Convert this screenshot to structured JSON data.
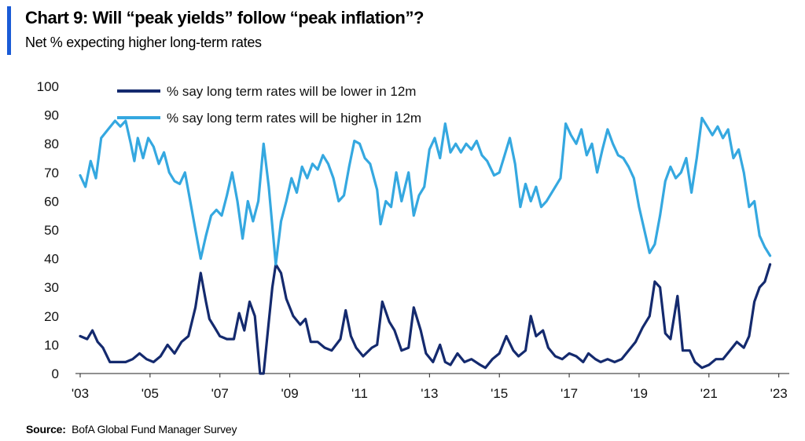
{
  "header": {
    "title": "Chart 9: Will “peak yields” follow “peak inflation”?",
    "subtitle": "Net % expecting higher long-term rates"
  },
  "footer": {
    "source_label": "Source:",
    "source_text": "BofA Global Fund Manager Survey"
  },
  "colors": {
    "accent": "#1a5bd6",
    "lower_series": "#142a6e",
    "higher_series": "#35a8e0"
  },
  "chart_data": {
    "type": "line",
    "title": "Chart 9: Will “peak yields” follow “peak inflation”?",
    "subtitle": "Net % expecting higher long-term rates",
    "ylim": [
      0,
      100
    ],
    "yticks": [
      0,
      10,
      20,
      30,
      40,
      50,
      60,
      70,
      80,
      90,
      100
    ],
    "xlim": [
      2003,
      2023.3
    ],
    "xticks": [
      {
        "value": 2003,
        "label": "'03"
      },
      {
        "value": 2005,
        "label": "'05"
      },
      {
        "value": 2007,
        "label": "'07"
      },
      {
        "value": 2009,
        "label": "'09"
      },
      {
        "value": 2011,
        "label": "'11"
      },
      {
        "value": 2013,
        "label": "'13"
      },
      {
        "value": 2015,
        "label": "'15"
      },
      {
        "value": 2017,
        "label": "'17"
      },
      {
        "value": 2019,
        "label": "'19"
      },
      {
        "value": 2021,
        "label": "'21"
      },
      {
        "value": 2023,
        "label": "'23"
      }
    ],
    "legend_position": "top-center",
    "grid": false,
    "series": [
      {
        "name": "% say long term rates will be lower in 12m",
        "color": "#142a6e",
        "points": [
          [
            2003.0,
            13
          ],
          [
            2003.2,
            12
          ],
          [
            2003.35,
            15
          ],
          [
            2003.5,
            11
          ],
          [
            2003.65,
            9
          ],
          [
            2003.85,
            4
          ],
          [
            2004.1,
            4
          ],
          [
            2004.3,
            4
          ],
          [
            2004.5,
            5
          ],
          [
            2004.7,
            7
          ],
          [
            2004.9,
            5
          ],
          [
            2005.1,
            4
          ],
          [
            2005.3,
            6
          ],
          [
            2005.5,
            10
          ],
          [
            2005.7,
            7
          ],
          [
            2005.9,
            11
          ],
          [
            2006.1,
            13
          ],
          [
            2006.3,
            23
          ],
          [
            2006.45,
            35
          ],
          [
            2006.6,
            25
          ],
          [
            2006.7,
            19
          ],
          [
            2006.85,
            16
          ],
          [
            2007.0,
            13
          ],
          [
            2007.2,
            12
          ],
          [
            2007.4,
            12
          ],
          [
            2007.55,
            21
          ],
          [
            2007.7,
            15
          ],
          [
            2007.85,
            25
          ],
          [
            2008.0,
            20
          ],
          [
            2008.15,
            0
          ],
          [
            2008.25,
            0
          ],
          [
            2008.4,
            18
          ],
          [
            2008.5,
            30
          ],
          [
            2008.6,
            38
          ],
          [
            2008.75,
            35
          ],
          [
            2008.9,
            26
          ],
          [
            2009.1,
            20
          ],
          [
            2009.3,
            17
          ],
          [
            2009.45,
            19
          ],
          [
            2009.6,
            11
          ],
          [
            2009.8,
            11
          ],
          [
            2010.0,
            9
          ],
          [
            2010.2,
            8
          ],
          [
            2010.45,
            12
          ],
          [
            2010.6,
            22
          ],
          [
            2010.75,
            13
          ],
          [
            2010.9,
            9
          ],
          [
            2011.1,
            6
          ],
          [
            2011.35,
            9
          ],
          [
            2011.5,
            10
          ],
          [
            2011.65,
            25
          ],
          [
            2011.85,
            18
          ],
          [
            2012.0,
            15
          ],
          [
            2012.2,
            8
          ],
          [
            2012.4,
            9
          ],
          [
            2012.55,
            23
          ],
          [
            2012.75,
            15
          ],
          [
            2012.9,
            7
          ],
          [
            2013.1,
            4
          ],
          [
            2013.3,
            10
          ],
          [
            2013.45,
            4
          ],
          [
            2013.6,
            3
          ],
          [
            2013.8,
            7
          ],
          [
            2014.0,
            4
          ],
          [
            2014.2,
            5
          ],
          [
            2014.45,
            3
          ],
          [
            2014.6,
            2
          ],
          [
            2014.8,
            5
          ],
          [
            2015.0,
            7
          ],
          [
            2015.2,
            13
          ],
          [
            2015.4,
            8
          ],
          [
            2015.55,
            6
          ],
          [
            2015.75,
            8
          ],
          [
            2015.9,
            20
          ],
          [
            2016.05,
            13
          ],
          [
            2016.25,
            15
          ],
          [
            2016.4,
            9
          ],
          [
            2016.6,
            6
          ],
          [
            2016.8,
            5
          ],
          [
            2017.0,
            7
          ],
          [
            2017.2,
            6
          ],
          [
            2017.4,
            4
          ],
          [
            2017.55,
            7
          ],
          [
            2017.75,
            5
          ],
          [
            2017.9,
            4
          ],
          [
            2018.1,
            5
          ],
          [
            2018.3,
            4
          ],
          [
            2018.5,
            5
          ],
          [
            2018.7,
            8
          ],
          [
            2018.9,
            11
          ],
          [
            2019.1,
            16
          ],
          [
            2019.3,
            20
          ],
          [
            2019.45,
            32
          ],
          [
            2019.6,
            30
          ],
          [
            2019.75,
            14
          ],
          [
            2019.9,
            12
          ],
          [
            2020.1,
            27
          ],
          [
            2020.25,
            8
          ],
          [
            2020.45,
            8
          ],
          [
            2020.6,
            4
          ],
          [
            2020.8,
            2
          ],
          [
            2021.0,
            3
          ],
          [
            2021.2,
            5
          ],
          [
            2021.4,
            5
          ],
          [
            2021.6,
            8
          ],
          [
            2021.8,
            11
          ],
          [
            2022.0,
            9
          ],
          [
            2022.15,
            13
          ],
          [
            2022.3,
            25
          ],
          [
            2022.45,
            30
          ],
          [
            2022.6,
            32
          ],
          [
            2022.75,
            38
          ]
        ]
      },
      {
        "name": "% say long term rates will be higher in 12m",
        "color": "#35a8e0",
        "points": [
          [
            2003.0,
            69
          ],
          [
            2003.15,
            65
          ],
          [
            2003.3,
            74
          ],
          [
            2003.45,
            68
          ],
          [
            2003.6,
            82
          ],
          [
            2003.8,
            85
          ],
          [
            2004.0,
            88
          ],
          [
            2004.15,
            86
          ],
          [
            2004.3,
            88
          ],
          [
            2004.45,
            80
          ],
          [
            2004.55,
            74
          ],
          [
            2004.65,
            82
          ],
          [
            2004.8,
            75
          ],
          [
            2004.95,
            82
          ],
          [
            2005.1,
            79
          ],
          [
            2005.25,
            73
          ],
          [
            2005.4,
            77
          ],
          [
            2005.55,
            70
          ],
          [
            2005.7,
            67
          ],
          [
            2005.85,
            66
          ],
          [
            2006.0,
            70
          ],
          [
            2006.15,
            60
          ],
          [
            2006.3,
            50
          ],
          [
            2006.45,
            40
          ],
          [
            2006.6,
            48
          ],
          [
            2006.75,
            55
          ],
          [
            2006.9,
            57
          ],
          [
            2007.05,
            55
          ],
          [
            2007.2,
            62
          ],
          [
            2007.35,
            70
          ],
          [
            2007.5,
            60
          ],
          [
            2007.65,
            47
          ],
          [
            2007.8,
            60
          ],
          [
            2007.95,
            53
          ],
          [
            2008.1,
            60
          ],
          [
            2008.25,
            80
          ],
          [
            2008.4,
            65
          ],
          [
            2008.6,
            38
          ],
          [
            2008.75,
            53
          ],
          [
            2008.9,
            60
          ],
          [
            2009.05,
            68
          ],
          [
            2009.2,
            63
          ],
          [
            2009.35,
            72
          ],
          [
            2009.5,
            68
          ],
          [
            2009.65,
            73
          ],
          [
            2009.8,
            71
          ],
          [
            2009.95,
            76
          ],
          [
            2010.1,
            73
          ],
          [
            2010.25,
            68
          ],
          [
            2010.4,
            60
          ],
          [
            2010.55,
            62
          ],
          [
            2010.7,
            72
          ],
          [
            2010.85,
            81
          ],
          [
            2011.0,
            80
          ],
          [
            2011.15,
            75
          ],
          [
            2011.3,
            73
          ],
          [
            2011.5,
            64
          ],
          [
            2011.6,
            52
          ],
          [
            2011.75,
            60
          ],
          [
            2011.9,
            58
          ],
          [
            2012.05,
            70
          ],
          [
            2012.2,
            60
          ],
          [
            2012.4,
            70
          ],
          [
            2012.55,
            55
          ],
          [
            2012.7,
            62
          ],
          [
            2012.85,
            65
          ],
          [
            2013.0,
            78
          ],
          [
            2013.15,
            82
          ],
          [
            2013.3,
            75
          ],
          [
            2013.45,
            87
          ],
          [
            2013.6,
            77
          ],
          [
            2013.75,
            80
          ],
          [
            2013.9,
            77
          ],
          [
            2014.05,
            80
          ],
          [
            2014.2,
            78
          ],
          [
            2014.35,
            81
          ],
          [
            2014.5,
            76
          ],
          [
            2014.65,
            74
          ],
          [
            2014.85,
            69
          ],
          [
            2015.0,
            70
          ],
          [
            2015.15,
            76
          ],
          [
            2015.3,
            82
          ],
          [
            2015.45,
            73
          ],
          [
            2015.6,
            58
          ],
          [
            2015.75,
            66
          ],
          [
            2015.9,
            60
          ],
          [
            2016.05,
            65
          ],
          [
            2016.2,
            58
          ],
          [
            2016.35,
            60
          ],
          [
            2016.55,
            64
          ],
          [
            2016.75,
            68
          ],
          [
            2016.9,
            87
          ],
          [
            2017.05,
            83
          ],
          [
            2017.2,
            80
          ],
          [
            2017.35,
            85
          ],
          [
            2017.5,
            76
          ],
          [
            2017.65,
            80
          ],
          [
            2017.8,
            70
          ],
          [
            2017.95,
            78
          ],
          [
            2018.1,
            85
          ],
          [
            2018.25,
            80
          ],
          [
            2018.4,
            76
          ],
          [
            2018.55,
            75
          ],
          [
            2018.7,
            72
          ],
          [
            2018.85,
            68
          ],
          [
            2019.0,
            58
          ],
          [
            2019.15,
            50
          ],
          [
            2019.3,
            42
          ],
          [
            2019.45,
            45
          ],
          [
            2019.6,
            55
          ],
          [
            2019.75,
            67
          ],
          [
            2019.9,
            72
          ],
          [
            2020.05,
            68
          ],
          [
            2020.2,
            70
          ],
          [
            2020.35,
            75
          ],
          [
            2020.5,
            63
          ],
          [
            2020.65,
            75
          ],
          [
            2020.8,
            89
          ],
          [
            2020.95,
            86
          ],
          [
            2021.1,
            83
          ],
          [
            2021.25,
            86
          ],
          [
            2021.4,
            82
          ],
          [
            2021.55,
            85
          ],
          [
            2021.7,
            75
          ],
          [
            2021.85,
            78
          ],
          [
            2022.0,
            70
          ],
          [
            2022.15,
            58
          ],
          [
            2022.3,
            60
          ],
          [
            2022.45,
            48
          ],
          [
            2022.6,
            44
          ],
          [
            2022.75,
            41
          ]
        ]
      }
    ]
  }
}
